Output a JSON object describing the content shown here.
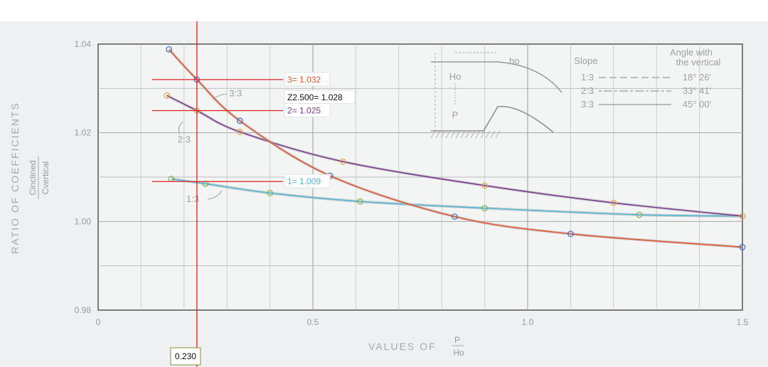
{
  "chart_data": {
    "type": "line",
    "xlabel": "VALUES OF P/Ho",
    "xlabel_main": "VALUES OF",
    "xlabel_num": "P",
    "xlabel_den": "Ho",
    "ylabel": "RATIO OF COEFFICIENTS",
    "ylabel_num": "Cinclined",
    "ylabel_den": "Cvertical",
    "xlim": [
      0,
      1.5
    ],
    "ylim": [
      0.98,
      1.04
    ],
    "x_ticks": [
      {
        "v": 0,
        "label": "0"
      },
      {
        "v": 0.5,
        "label": "0.5"
      },
      {
        "v": 1.0,
        "label": "1.0"
      },
      {
        "v": 1.5,
        "label": "1.5"
      }
    ],
    "y_ticks": [
      {
        "v": 0.98,
        "label": "0.98"
      },
      {
        "v": 1.0,
        "label": "1.00"
      },
      {
        "v": 1.02,
        "label": "1.02"
      },
      {
        "v": 1.04,
        "label": "1.04"
      }
    ],
    "grid": true,
    "series": [
      {
        "name": "1:3",
        "color": "#4fb6d8",
        "marker": "#7ab547",
        "x": [
          0.17,
          0.25,
          0.4,
          0.61,
          0.9,
          1.26,
          1.5
        ],
        "y": [
          1.0096,
          1.0085,
          1.0064,
          1.0045,
          1.003,
          1.0015,
          1.0012
        ]
      },
      {
        "name": "2:3",
        "color": "#7a3b92",
        "marker": "#e8a43c",
        "x": [
          0.16,
          0.23,
          0.33,
          0.57,
          0.9,
          1.2,
          1.5
        ],
        "y": [
          1.0284,
          1.025,
          1.0202,
          1.0135,
          1.0081,
          1.0042,
          1.0012
        ]
      },
      {
        "name": "3:3",
        "color": "#e0542a",
        "marker": "#3b6fd0",
        "x": [
          0.165,
          0.23,
          0.33,
          0.54,
          0.83,
          1.1,
          1.5
        ],
        "y": [
          1.0388,
          1.032,
          1.0227,
          1.0103,
          1.0011,
          0.9972,
          0.9942
        ]
      }
    ],
    "curve_labels": [
      {
        "text": "3:3",
        "x": 0.32,
        "y": 1.0282
      },
      {
        "text": "2:3",
        "x": 0.2,
        "y": 1.0178
      },
      {
        "text": "1:3",
        "x": 0.22,
        "y": 1.0044
      }
    ],
    "cursor": {
      "x": 0.23,
      "x_label": "0.230",
      "readouts": [
        {
          "text": "3= 1.032",
          "y": 1.032,
          "color": "#e0542a",
          "line": true
        },
        {
          "text": "Z2.500= 1.028",
          "y": 1.028,
          "color": "#111111",
          "line": false
        },
        {
          "text": "2= 1.025",
          "y": 1.025,
          "color": "#7a3b92",
          "line": true
        },
        {
          "text": "1= 1.009",
          "y": 1.009,
          "color": "#4fb6d8",
          "line": true
        }
      ]
    },
    "legend": {
      "slope_title": "Slope",
      "angle_title_1": "Angle with",
      "angle_title_2": "the vertical",
      "rows": [
        {
          "slope": "1:3",
          "angle": "18° 26'"
        },
        {
          "slope": "2:3",
          "angle": "33° 41'"
        },
        {
          "slope": "3:3",
          "angle": "45° 00'"
        }
      ],
      "inset_head": "ho",
      "inset_Ho": "Ho",
      "inset_P": "P"
    }
  }
}
